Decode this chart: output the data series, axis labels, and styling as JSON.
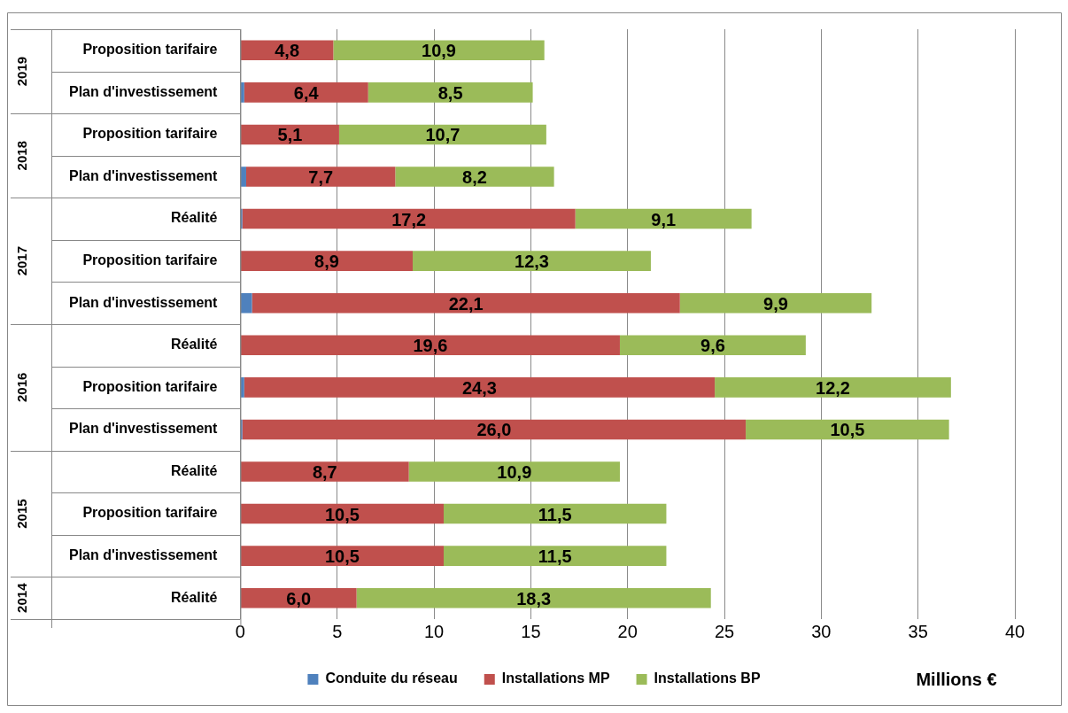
{
  "chart_data": {
    "type": "bar",
    "orientation": "horizontal",
    "stacked": true,
    "categories": [
      "Proposition tarifaire",
      "Plan d'investissement",
      "Proposition tarifaire",
      "Plan d'investissement",
      "Réalité",
      "Proposition tarifaire",
      "Plan d'investissement",
      "Réalité",
      "Proposition tarifaire",
      "Plan d'investissement",
      "Réalité",
      "Proposition tarifaire",
      "Plan d'investissement",
      "Réalité"
    ],
    "series": [
      {
        "name": "Conduite du réseau",
        "color": "#4f81bd",
        "values": [
          0,
          0.2,
          0,
          0.3,
          0.1,
          0,
          0.6,
          0,
          0.2,
          0.1,
          0,
          0,
          0,
          0
        ]
      },
      {
        "name": "Installations MP",
        "color": "#c0504d",
        "values": [
          4.8,
          6.4,
          5.1,
          7.7,
          17.2,
          8.9,
          22.1,
          19.6,
          24.3,
          26.0,
          8.7,
          10.5,
          10.5,
          6.0
        ],
        "value_labels": [
          "4,8",
          "6,4",
          "5,1",
          "7,7",
          "17,2",
          "8,9",
          "22,1",
          "19,6",
          "24,3",
          "26,0",
          "8,7",
          "10,5",
          "10,5",
          "6,0"
        ]
      },
      {
        "name": "Installations BP",
        "color": "#9bbb59",
        "values": [
          10.9,
          8.5,
          10.7,
          8.2,
          9.1,
          12.3,
          9.9,
          9.6,
          12.2,
          10.5,
          10.9,
          11.5,
          11.5,
          18.3
        ],
        "value_labels": [
          "10,9",
          "8,5",
          "10,7",
          "8,2",
          "9,1",
          "12,3",
          "9,9",
          "9,6",
          "12,2",
          "10,5",
          "10,9",
          "11,5",
          "11,5",
          "18,3"
        ]
      }
    ],
    "xlim": [
      0,
      40
    ],
    "xticks": [
      0,
      5,
      10,
      15,
      20,
      25,
      30,
      35,
      40
    ],
    "xlabel": "Millions €",
    "grid": "x",
    "legend": "bottom",
    "annotations": [
      "2019",
      "2018",
      "2017",
      "2016",
      "2015",
      "2014"
    ]
  }
}
